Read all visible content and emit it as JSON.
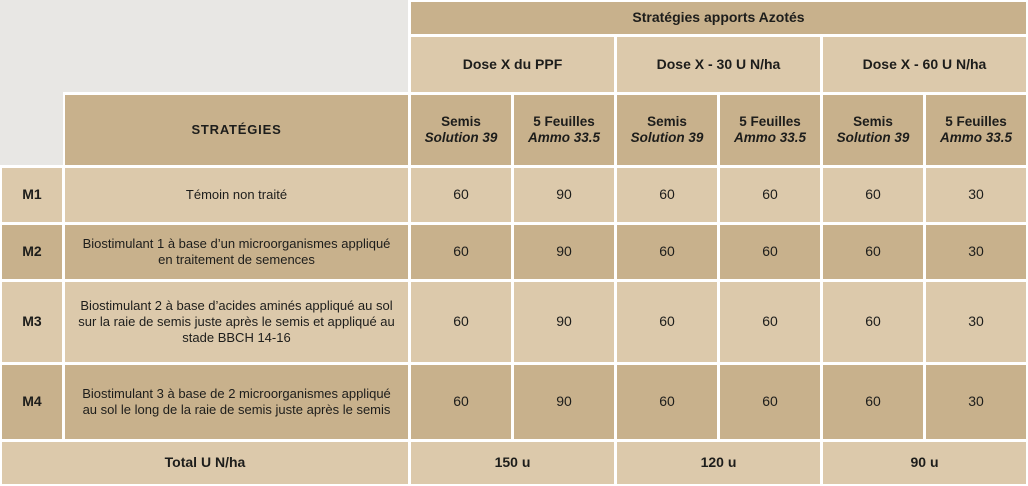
{
  "chart_data": {
    "type": "table",
    "title": "Stratégies apports Azotés",
    "column_groups": [
      "Dose X du PPF",
      "Dose X - 30 U N/ha",
      "Dose X - 60 U N/ha"
    ],
    "sub_columns": [
      {
        "stage": "Semis",
        "product": "Solution 39"
      },
      {
        "stage": "5 Feuilles",
        "product": "Ammo 33.5"
      },
      {
        "stage": "Semis",
        "product": "Solution 39"
      },
      {
        "stage": "5 Feuilles",
        "product": "Ammo 33.5"
      },
      {
        "stage": "Semis",
        "product": "Solution 39"
      },
      {
        "stage": "5 Feuilles",
        "product": "Ammo 33.5"
      }
    ],
    "row_header": "STRATÉGIES",
    "rows": [
      {
        "code": "M1",
        "strategy": "Témoin non traité",
        "values": [
          "60",
          "90",
          "60",
          "60",
          "60",
          "30"
        ]
      },
      {
        "code": "M2",
        "strategy": "Biostimulant 1 à base d’un microorganismes appliqué en traitement de semences",
        "values": [
          "60",
          "90",
          "60",
          "60",
          "60",
          "30"
        ]
      },
      {
        "code": "M3",
        "strategy": "Biostimulant 2 à base d’acides aminés appliqué au sol sur la raie de semis juste après le semis et appliqué au stade BBCH 14-16",
        "values": [
          "60",
          "90",
          "60",
          "60",
          "60",
          "30"
        ]
      },
      {
        "code": "M4",
        "strategy": "Biostimulant 3 à base de 2 microorganismes appliqué au sol le long de la raie de semis juste après le semis",
        "values": [
          "60",
          "90",
          "60",
          "60",
          "60",
          "30"
        ]
      }
    ],
    "footer": {
      "label": "Total U N/ha",
      "totals": [
        "150 u",
        "120 u",
        "90 u"
      ]
    }
  },
  "colors": {
    "dark_tan": "#c8b18c",
    "light_tan": "#dcc9ab",
    "gray": "#e8e7e4",
    "text": "#1d1d1b",
    "gap": "#ffffff"
  }
}
